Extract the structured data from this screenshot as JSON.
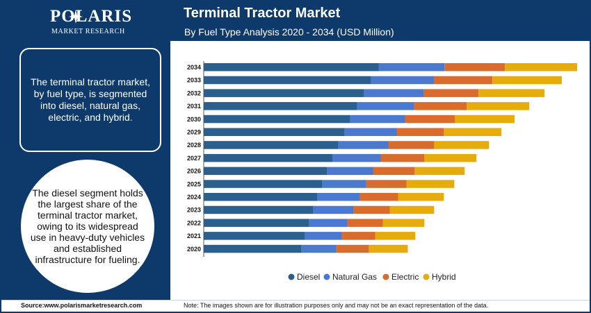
{
  "brand": {
    "name": "POLARIS",
    "tagline": "MARKET RESEARCH"
  },
  "summary": {
    "text": "The terminal tractor market, by fuel type, is segmented into diesel, natural gas, electric, and hybrid."
  },
  "insight": {
    "text": "The diesel segment holds the largest share of the terminal tractor market, owing to its widespread use in heavy-duty vehicles and established infrastructure for fueling."
  },
  "footer": {
    "source": "Source:www.polarismarketresearch.com",
    "note": "Note: The images shown are for illustration purposes only and may not be an exact representation of the data."
  },
  "colors": {
    "navy": "#0d3a6b",
    "diesel": "#2b5f8e",
    "natural_gas": "#4a79cf",
    "electric": "#d96b2c",
    "hybrid": "#e6ac0c"
  },
  "chart_data": {
    "type": "bar",
    "orientation": "horizontal",
    "stacked": true,
    "title": "Terminal Tractor Market",
    "subtitle": "By Fuel Type Analysis 2020 - 2034 (USD Million)",
    "xlabel": "",
    "ylabel": "",
    "grid": false,
    "legend_position": "bottom",
    "categories": [
      "2034",
      "2033",
      "2032",
      "2031",
      "2030",
      "2029",
      "2028",
      "2027",
      "2026",
      "2025",
      "2024",
      "2023",
      "2022",
      "2021",
      "2020"
    ],
    "series": [
      {
        "name": "Diesel",
        "color": "#2b5f8e",
        "values": [
          252,
          241,
          231,
          221,
          211,
          203,
          194,
          186,
          178,
          171,
          164,
          158,
          152,
          146,
          141
        ]
      },
      {
        "name": "Natural Gas",
        "color": "#4a79cf",
        "values": [
          95,
          91,
          86,
          82,
          79,
          75,
          72,
          69,
          66,
          63,
          61,
          58,
          55,
          53,
          50
        ]
      },
      {
        "name": "Electric",
        "color": "#d96b2c",
        "values": [
          87,
          84,
          79,
          76,
          72,
          68,
          66,
          63,
          60,
          58,
          55,
          52,
          51,
          48,
          47
        ]
      },
      {
        "name": "Hybrid",
        "color": "#e6ac0c",
        "values": [
          104,
          100,
          95,
          90,
          86,
          83,
          79,
          75,
          72,
          69,
          66,
          64,
          60,
          58,
          56
        ]
      }
    ]
  }
}
